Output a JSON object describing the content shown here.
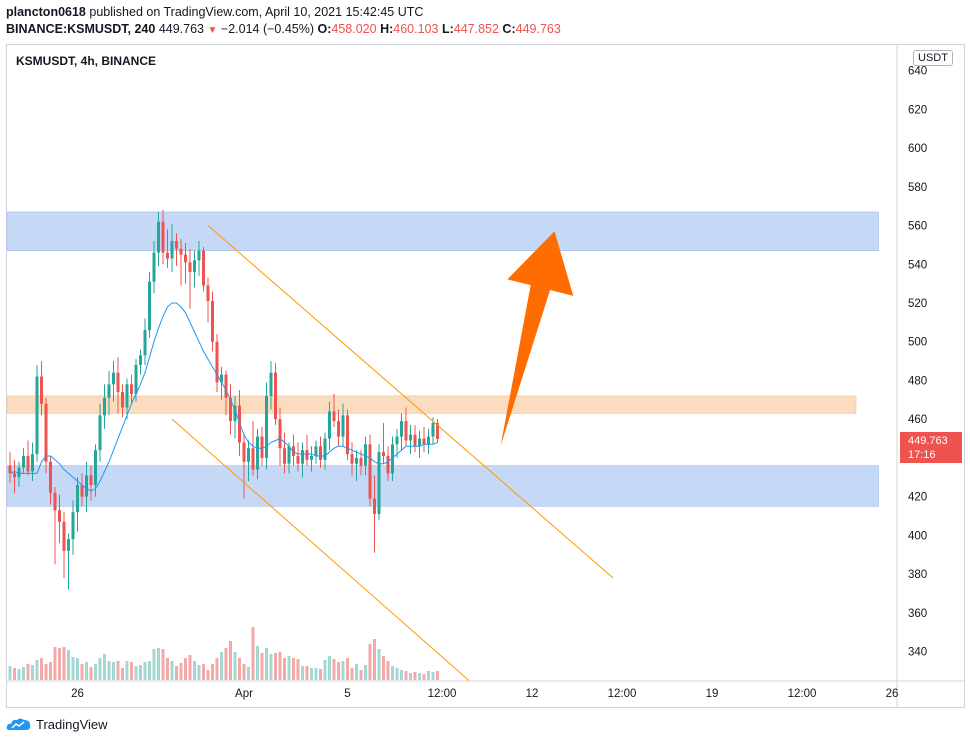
{
  "header": {
    "line1_user": "plancton0618",
    "line1_rest": "published on TradingView.com, April 10, 2021 15:42:45 UTC",
    "symbol": "BINANCE:KSMUSDT, 240",
    "last": "449.763",
    "change": "−2.014 (−0.45%)",
    "o_label": "O:",
    "o_value": "458.020",
    "h_label": "H:",
    "h_value": "460.103",
    "l_label": "L:",
    "l_value": "447.852",
    "c_label": "C:",
    "c_value": "449.763"
  },
  "symbol_label": "KSMUSDT, 4h, BINANCE",
  "currency": "USDT",
  "price_tag": {
    "price": "449.763",
    "countdown": "17:16"
  },
  "footer": {
    "brand": "TradingView"
  },
  "colors": {
    "up": "#26a69a",
    "down": "#ef5350",
    "ma": "#2196f3",
    "channel": "#ff9800",
    "blue_zone": "#c5d9f7",
    "orange_zone": "#fcdcbf",
    "arrow": "#ff6d00"
  },
  "chart_data": {
    "type": "candlestick",
    "title": "KSMUSDT, 4h, BINANCE",
    "ylim": [
      325,
      645
    ],
    "y_ticks": [
      340,
      360,
      380,
      400,
      420,
      440,
      460,
      480,
      500,
      520,
      540,
      560,
      580,
      600,
      620,
      640
    ],
    "x_ticks": [
      "26",
      "Apr",
      "5",
      "12:00",
      "12",
      "12:00",
      "19",
      "12:00",
      "26"
    ],
    "x_tick_bars": [
      15,
      52,
      75,
      96,
      116,
      136,
      156,
      176,
      196
    ],
    "grid": false,
    "candles_ohlc": [
      [
        436,
        443,
        427,
        432
      ],
      [
        432,
        439,
        422,
        430
      ],
      [
        430,
        438,
        425,
        435
      ],
      [
        435,
        445,
        432,
        441
      ],
      [
        441,
        449,
        431,
        433
      ],
      [
        433,
        448,
        428,
        442
      ],
      [
        442,
        488,
        438,
        482
      ],
      [
        482,
        490,
        462,
        468
      ],
      [
        468,
        471,
        432,
        438
      ],
      [
        438,
        441,
        416,
        422
      ],
      [
        422,
        425,
        385,
        413
      ],
      [
        413,
        421,
        396,
        407
      ],
      [
        407,
        412,
        378,
        392
      ],
      [
        392,
        401,
        372,
        398
      ],
      [
        398,
        418,
        390,
        412
      ],
      [
        412,
        430,
        402,
        426
      ],
      [
        426,
        432,
        415,
        420
      ],
      [
        420,
        438,
        412,
        431
      ],
      [
        431,
        436,
        418,
        426
      ],
      [
        426,
        447,
        420,
        444
      ],
      [
        444,
        468,
        438,
        462
      ],
      [
        462,
        478,
        455,
        471
      ],
      [
        471,
        485,
        462,
        478
      ],
      [
        478,
        490,
        469,
        484
      ],
      [
        484,
        492,
        463,
        474
      ],
      [
        474,
        478,
        461,
        466
      ],
      [
        466,
        481,
        460,
        478
      ],
      [
        478,
        483,
        468,
        473
      ],
      [
        473,
        491,
        469,
        488
      ],
      [
        488,
        496,
        483,
        493
      ],
      [
        493,
        512,
        488,
        506
      ],
      [
        506,
        536,
        502,
        531
      ],
      [
        531,
        552,
        525,
        546
      ],
      [
        546,
        567,
        539,
        562
      ],
      [
        562,
        568,
        540,
        546
      ],
      [
        546,
        558,
        538,
        543
      ],
      [
        543,
        561,
        536,
        552
      ],
      [
        552,
        556,
        539,
        548
      ],
      [
        548,
        553,
        529,
        545
      ],
      [
        545,
        551,
        530,
        541
      ],
      [
        541,
        548,
        517,
        536
      ],
      [
        536,
        547,
        528,
        542
      ],
      [
        542,
        552,
        534,
        547
      ],
      [
        547,
        549,
        526,
        529
      ],
      [
        529,
        533,
        510,
        521
      ],
      [
        521,
        526,
        495,
        500
      ],
      [
        500,
        504,
        474,
        479
      ],
      [
        479,
        487,
        470,
        483
      ],
      [
        483,
        485,
        462,
        471
      ],
      [
        471,
        478,
        452,
        459
      ],
      [
        459,
        472,
        450,
        467
      ],
      [
        467,
        475,
        441,
        448
      ],
      [
        448,
        452,
        419,
        438
      ],
      [
        438,
        449,
        428,
        445
      ],
      [
        445,
        459,
        431,
        434
      ],
      [
        434,
        455,
        429,
        451
      ],
      [
        451,
        456,
        436,
        440
      ],
      [
        440,
        479,
        434,
        472
      ],
      [
        472,
        490,
        465,
        484
      ],
      [
        484,
        489,
        457,
        460
      ],
      [
        460,
        466,
        436,
        445
      ],
      [
        445,
        453,
        432,
        437
      ],
      [
        437,
        448,
        432,
        446
      ],
      [
        446,
        452,
        436,
        441
      ],
      [
        441,
        448,
        433,
        437
      ],
      [
        437,
        448,
        430,
        444
      ],
      [
        444,
        452,
        436,
        439
      ],
      [
        439,
        446,
        433,
        441
      ],
      [
        441,
        449,
        437,
        446
      ],
      [
        446,
        451,
        435,
        439
      ],
      [
        439,
        453,
        434,
        450
      ],
      [
        450,
        469,
        444,
        464
      ],
      [
        464,
        473,
        456,
        459
      ],
      [
        459,
        465,
        446,
        451
      ],
      [
        451,
        468,
        446,
        462
      ],
      [
        462,
        465,
        439,
        442
      ],
      [
        442,
        448,
        431,
        437
      ],
      [
        437,
        444,
        428,
        440
      ],
      [
        440,
        444,
        431,
        436
      ],
      [
        436,
        451,
        431,
        447
      ],
      [
        447,
        452,
        415,
        419
      ],
      [
        419,
        431,
        391,
        411
      ],
      [
        411,
        447,
        408,
        443
      ],
      [
        443,
        458,
        437,
        441
      ],
      [
        441,
        446,
        428,
        432
      ],
      [
        432,
        451,
        428,
        447
      ],
      [
        447,
        455,
        440,
        451
      ],
      [
        451,
        463,
        444,
        459
      ],
      [
        459,
        466,
        446,
        449
      ],
      [
        449,
        457,
        442,
        452
      ],
      [
        452,
        457,
        443,
        446
      ],
      [
        446,
        454,
        440,
        450
      ],
      [
        450,
        456,
        443,
        447
      ],
      [
        447,
        455,
        442,
        451
      ],
      [
        451,
        461,
        447,
        458
      ],
      [
        458,
        460.103,
        447.852,
        449.763
      ]
    ],
    "moving_average": {
      "name": "",
      "values": [
        432,
        433,
        432,
        432,
        432,
        432,
        432,
        438,
        441,
        441,
        439,
        437,
        434,
        432,
        430,
        428,
        426,
        424,
        423,
        424,
        428,
        433,
        438,
        444,
        450,
        456,
        462,
        468,
        473,
        478,
        484,
        492,
        500,
        507,
        513,
        518,
        520,
        520,
        518,
        515,
        510,
        505,
        500,
        495,
        491,
        487,
        483,
        479,
        475,
        470,
        465,
        458,
        452,
        448,
        446,
        445,
        445,
        446,
        448,
        449,
        450,
        448,
        446,
        443,
        442,
        442,
        442,
        442,
        441,
        441,
        441,
        443,
        445,
        446,
        446,
        445,
        444,
        443,
        442,
        441,
        440,
        438,
        437,
        437,
        438,
        440,
        442,
        444,
        446,
        446,
        446,
        446,
        447,
        447,
        447,
        448
      ]
    },
    "volume": {
      "values": [
        14,
        12,
        11,
        13,
        16,
        15,
        20,
        22,
        16,
        18,
        33,
        32,
        33,
        30,
        23,
        22,
        16,
        18,
        13,
        16,
        22,
        26,
        19,
        18,
        19,
        12,
        19,
        18,
        14,
        15,
        18,
        19,
        31,
        32,
        31,
        22,
        19,
        14,
        17,
        22,
        25,
        19,
        15,
        16,
        10,
        16,
        22,
        28,
        32,
        39,
        28,
        22,
        16,
        13,
        53,
        34,
        27,
        32,
        26,
        27,
        28,
        22,
        24,
        22,
        21,
        14,
        14,
        12,
        12,
        11,
        20,
        24,
        21,
        18,
        19,
        22,
        12,
        16,
        10,
        15,
        36,
        41,
        31,
        24,
        19,
        14,
        12,
        10,
        9,
        7,
        8,
        7,
        6,
        9,
        8,
        9
      ],
      "up": [
        true,
        false,
        true,
        true,
        false,
        true,
        true,
        false,
        false,
        false,
        false,
        false,
        false,
        true,
        true,
        true,
        false,
        true,
        false,
        true,
        true,
        true,
        true,
        true,
        false,
        false,
        true,
        false,
        true,
        true,
        true,
        true,
        true,
        true,
        false,
        false,
        true,
        false,
        false,
        false,
        false,
        true,
        true,
        false,
        false,
        false,
        false,
        true,
        false,
        false,
        true,
        false,
        false,
        true,
        false,
        true,
        false,
        true,
        true,
        false,
        false,
        false,
        true,
        false,
        false,
        true,
        false,
        true,
        true,
        false,
        true,
        true,
        false,
        false,
        true,
        false,
        false,
        true,
        false,
        true,
        false,
        false,
        true,
        false,
        false,
        true,
        true,
        true,
        false,
        true,
        false,
        true,
        false,
        true,
        true,
        false
      ]
    },
    "zones": [
      {
        "kind": "blue",
        "from": 547,
        "to": 567,
        "end_bar": 193
      },
      {
        "kind": "orange",
        "from": 463,
        "to": 472,
        "end_bar": 188
      },
      {
        "kind": "blue",
        "from": 415,
        "to": 436,
        "end_bar": 193
      }
    ],
    "channel_lines": [
      {
        "from_bar": 44,
        "from_price": 560,
        "to_bar": 134,
        "to_price": 378
      },
      {
        "from_bar": 36,
        "from_price": 460,
        "to_bar": 102,
        "to_price": 325
      }
    ],
    "arrow": {
      "from_bar": 109,
      "from_price": 446,
      "to_bar": 121,
      "to_price": 557
    },
    "last_price": 449.763
  }
}
